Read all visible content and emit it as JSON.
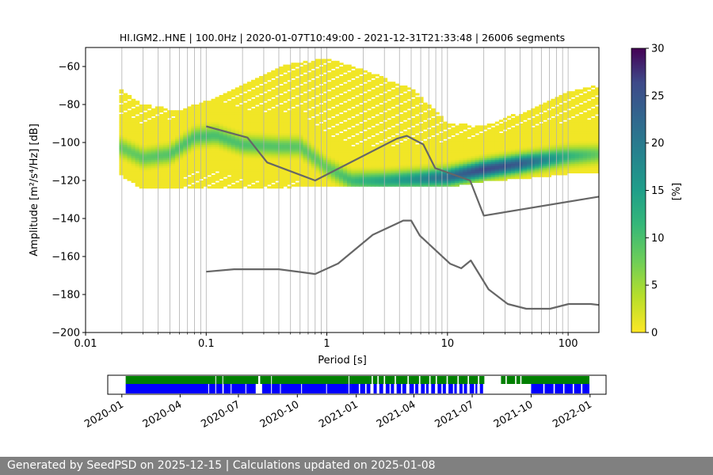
{
  "chart_data": {
    "type": "heatmap",
    "title": "HI.IGM2..HNE | 100.0Hz | 2020-01-07T10:49:00 - 2021-12-31T21:33:48 | 26006 segments",
    "xlabel": "Period [s]",
    "ylabel": "Amplitude [m²/s⁴/Hz] [dB]",
    "x_scale": "log",
    "xlim": [
      0.01,
      180
    ],
    "ylim": [
      -200,
      -50
    ],
    "x_ticks": [
      {
        "value": 0.01,
        "label": "0.01"
      },
      {
        "value": 0.1,
        "label": "0.1"
      },
      {
        "value": 1,
        "label": "1"
      },
      {
        "value": 10,
        "label": "10"
      },
      {
        "value": 100,
        "label": "100"
      }
    ],
    "y_ticks": [
      -60,
      -80,
      -100,
      -120,
      -140,
      -160,
      -180,
      -200
    ],
    "grid": true,
    "grid_x_periods": [
      0.02,
      0.03,
      0.04,
      0.05,
      0.06,
      0.07,
      0.08,
      0.09,
      0.1,
      0.2,
      0.3,
      0.4,
      0.5,
      0.6,
      0.7,
      0.8,
      0.9,
      1,
      2,
      3,
      4,
      5,
      6,
      7,
      8,
      9,
      10,
      20,
      30,
      40,
      50,
      60,
      70,
      80,
      90,
      100
    ],
    "colorbar": {
      "label": "[%]",
      "min": 0,
      "max": 30,
      "ticks": [
        0,
        5,
        10,
        15,
        20,
        25,
        30
      ],
      "colormap": "viridis_r"
    },
    "density": {
      "x_range": [
        0.019,
        180
      ],
      "low_edge": [
        [
          0.019,
          -116
        ],
        [
          0.03,
          -124
        ],
        [
          0.1,
          -124
        ],
        [
          0.2,
          -124
        ],
        [
          0.5,
          -123
        ],
        [
          1,
          -123
        ],
        [
          2,
          -123
        ],
        [
          5,
          -123
        ],
        [
          10,
          -123
        ],
        [
          20,
          -120
        ],
        [
          50,
          -118
        ],
        [
          100,
          -116
        ],
        [
          180,
          -115
        ]
      ],
      "high_edge": [
        [
          0.019,
          -72
        ],
        [
          0.03,
          -80
        ],
        [
          0.06,
          -84
        ],
        [
          0.1,
          -78
        ],
        [
          0.2,
          -70
        ],
        [
          0.4,
          -60
        ],
        [
          1,
          -56
        ],
        [
          2,
          -62
        ],
        [
          5,
          -72
        ],
        [
          10,
          -90
        ],
        [
          20,
          -92
        ],
        [
          50,
          -82
        ],
        [
          100,
          -74
        ],
        [
          180,
          -70
        ]
      ],
      "mode": [
        [
          0.019,
          -102
        ],
        [
          0.03,
          -108
        ],
        [
          0.05,
          -106
        ],
        [
          0.08,
          -97
        ],
        [
          0.12,
          -96
        ],
        [
          0.2,
          -101
        ],
        [
          0.4,
          -102
        ],
        [
          0.6,
          -102
        ],
        [
          1,
          -113
        ],
        [
          1.6,
          -120
        ],
        [
          3,
          -120
        ],
        [
          6,
          -119
        ],
        [
          10,
          -118
        ],
        [
          20,
          -114
        ],
        [
          50,
          -110
        ],
        [
          100,
          -107
        ],
        [
          180,
          -106
        ]
      ],
      "peak_percent": [
        [
          0.019,
          8
        ],
        [
          0.1,
          10
        ],
        [
          0.5,
          9
        ],
        [
          1,
          8
        ],
        [
          2,
          12
        ],
        [
          5,
          16
        ],
        [
          10,
          22
        ],
        [
          20,
          26
        ],
        [
          40,
          24
        ],
        [
          100,
          12
        ],
        [
          180,
          8
        ]
      ]
    },
    "series": [
      {
        "points": [
          [
            0.1,
            -91.5
          ],
          [
            0.22,
            -97.4
          ],
          [
            0.32,
            -110.5
          ],
          [
            0.8,
            -120.0
          ],
          [
            3.8,
            -98.0
          ],
          [
            4.6,
            -96.5
          ],
          [
            6.3,
            -101.0
          ],
          [
            7.9,
            -113.5
          ],
          [
            15.4,
            -120.0
          ],
          [
            20.0,
            -138.5
          ],
          [
            180,
            -128.5
          ]
        ]
      },
      {
        "points": [
          [
            0.1,
            -168.0
          ],
          [
            0.17,
            -166.7
          ],
          [
            0.4,
            -166.7
          ],
          [
            0.8,
            -169.2
          ],
          [
            1.24,
            -163.7
          ],
          [
            2.4,
            -148.6
          ],
          [
            4.3,
            -141.1
          ],
          [
            5.0,
            -141.1
          ],
          [
            5.9,
            -149.0
          ],
          [
            10.5,
            -163.8
          ],
          [
            13.0,
            -166.2
          ],
          [
            15.6,
            -162.1
          ],
          [
            21.9,
            -177.3
          ],
          [
            31.6,
            -185.0
          ],
          [
            45.0,
            -187.5
          ],
          [
            70.8,
            -187.5
          ],
          [
            101,
            -185.0
          ],
          [
            154,
            -185.0
          ],
          [
            180,
            -185.5
          ]
        ]
      }
    ],
    "availability": {
      "x_tick_labels": [
        "2020-01",
        "2020-04",
        "2020-07",
        "2020-10",
        "2021-01",
        "2021-04",
        "2021-07",
        "2021-10",
        "2022-01"
      ],
      "x_tick_dates": [
        "2020-01-01",
        "2020-04-01",
        "2020-07-01",
        "2020-10-01",
        "2021-01-01",
        "2021-04-01",
        "2021-07-01",
        "2021-10-01",
        "2022-01-01"
      ],
      "xlim": [
        "2019-12-10",
        "2022-01-26"
      ],
      "data_range": [
        "2020-01-07",
        "2021-12-31"
      ],
      "colors": {
        "data": "#008000",
        "used": "#0000ff"
      },
      "data_gaps": [
        [
          "2020-05-26",
          "2020-05-27"
        ],
        [
          "2020-06-06",
          "2020-06-07"
        ],
        [
          "2020-08-01",
          "2020-08-04"
        ],
        [
          "2020-08-21",
          "2020-08-22"
        ],
        [
          "2020-12-20",
          "2020-12-21"
        ],
        [
          "2021-01-25",
          "2021-01-27"
        ],
        [
          "2021-02-03",
          "2021-02-05"
        ],
        [
          "2021-02-13",
          "2021-02-15"
        ],
        [
          "2021-03-02",
          "2021-03-04"
        ],
        [
          "2021-03-22",
          "2021-03-24"
        ],
        [
          "2021-04-09",
          "2021-04-11"
        ],
        [
          "2021-04-25",
          "2021-04-27"
        ],
        [
          "2021-05-05",
          "2021-05-07"
        ],
        [
          "2021-05-22",
          "2021-05-24"
        ],
        [
          "2021-06-08",
          "2021-06-10"
        ],
        [
          "2021-06-24",
          "2021-06-26"
        ],
        [
          "2021-07-10",
          "2021-07-12"
        ],
        [
          "2021-07-20",
          "2021-08-15"
        ],
        [
          "2021-08-22",
          "2021-08-24"
        ],
        [
          "2021-09-06",
          "2021-09-08"
        ],
        [
          "2021-09-14",
          "2021-09-16"
        ]
      ],
      "used_gaps": [
        [
          "2020-05-15",
          "2020-05-16"
        ],
        [
          "2020-05-26",
          "2020-05-27"
        ],
        [
          "2020-06-06",
          "2020-06-08"
        ],
        [
          "2020-06-19",
          "2020-06-20"
        ],
        [
          "2020-07-12",
          "2020-07-13"
        ],
        [
          "2020-07-28",
          "2020-08-07"
        ],
        [
          "2020-08-21",
          "2020-08-22"
        ],
        [
          "2020-09-04",
          "2020-09-05"
        ],
        [
          "2020-10-07",
          "2020-10-08"
        ],
        [
          "2020-11-15",
          "2020-11-16"
        ],
        [
          "2020-12-20",
          "2020-12-21"
        ],
        [
          "2021-01-05",
          "2021-01-07"
        ],
        [
          "2021-01-15",
          "2021-01-17"
        ],
        [
          "2021-01-23",
          "2021-01-28"
        ],
        [
          "2021-02-02",
          "2021-02-06"
        ],
        [
          "2021-02-12",
          "2021-02-16"
        ],
        [
          "2021-02-22",
          "2021-02-24"
        ],
        [
          "2021-03-01",
          "2021-03-05"
        ],
        [
          "2021-03-12",
          "2021-03-14"
        ],
        [
          "2021-03-20",
          "2021-03-25"
        ],
        [
          "2021-04-01",
          "2021-04-03"
        ],
        [
          "2021-04-08",
          "2021-04-12"
        ],
        [
          "2021-04-18",
          "2021-04-20"
        ],
        [
          "2021-04-24",
          "2021-04-28"
        ],
        [
          "2021-05-04",
          "2021-05-08"
        ],
        [
          "2021-05-14",
          "2021-05-16"
        ],
        [
          "2021-05-21",
          "2021-05-25"
        ],
        [
          "2021-06-01",
          "2021-06-03"
        ],
        [
          "2021-06-07",
          "2021-06-11"
        ],
        [
          "2021-06-16",
          "2021-06-18"
        ],
        [
          "2021-06-23",
          "2021-06-27"
        ],
        [
          "2021-07-04",
          "2021-07-06"
        ],
        [
          "2021-07-09",
          "2021-07-13"
        ],
        [
          "2021-07-18",
          "2021-10-01"
        ],
        [
          "2021-10-20",
          "2021-10-22"
        ],
        [
          "2021-11-05",
          "2021-11-07"
        ],
        [
          "2021-11-20",
          "2021-11-22"
        ],
        [
          "2021-12-05",
          "2021-12-07"
        ],
        [
          "2021-12-18",
          "2021-12-20"
        ]
      ]
    }
  },
  "footer": {
    "text": "Generated by SeedPSD on 2025-12-15 | Calculations updated on 2025-01-08"
  }
}
